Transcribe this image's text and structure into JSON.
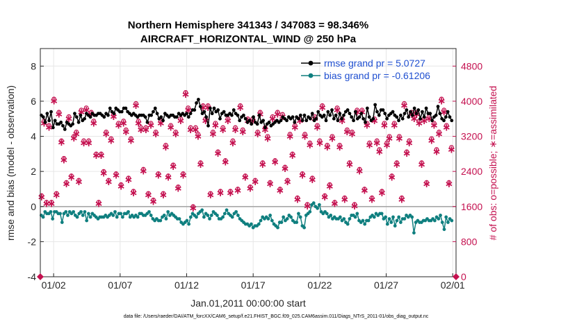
{
  "chart_data": {
    "type": "line",
    "title_line1": "Northern Hemisphere 341343 / 347083 = 98.346%",
    "title_line2": "AIRCRAFT_HORIZONTAL_WIND @ 250 hPa",
    "ylabel_left": "rmse and bias (model - observation)",
    "ylabel_right": "# of obs: o=possible; ∗=assimilated",
    "xlabel": "Jan.01,2011 00:00:00 start",
    "footnote": "data file: /Users/raeder/DAI/ATM_forcXX/CAM6_setup/f.e21.FHIST_BGC.f09_025.CAM6assim.011/Diags_NTrS_2011-01/obs_diag_output.nc",
    "ylim_left": [
      -4,
      9
    ],
    "ylim_right": [
      0,
      5200
    ],
    "xlim_days": [
      0,
      31.25
    ],
    "yticks_left": [
      "-4",
      "-2",
      "0",
      "2",
      "4",
      "6",
      "8"
    ],
    "yticks_right": [
      "0",
      "800",
      "1600",
      "2400",
      "3200",
      "4000",
      "4800"
    ],
    "xticks": [
      {
        "day": 1,
        "label": "01/02"
      },
      {
        "day": 6,
        "label": "01/07"
      },
      {
        "day": 11,
        "label": "01/12"
      },
      {
        "day": 16,
        "label": "01/17"
      },
      {
        "day": 21,
        "label": "01/22"
      },
      {
        "day": 26,
        "label": "01/27"
      },
      {
        "day": 31,
        "label": "02/01"
      }
    ],
    "legend": {
      "rmse_label": "rmse grand pr = 5.0727",
      "bias_label": "bias grand pr = -0.61206",
      "placement": "top-right"
    },
    "colors": {
      "rmse": "#000000",
      "bias": "#0f7f7f",
      "obs": "#c4104f",
      "zero_line": "#a8a8a8"
    },
    "series": [
      {
        "name": "rmse",
        "values": [
          5.2,
          5.1,
          4.8,
          5.3,
          4.9,
          5.4,
          4.5,
          4.9,
          4.7,
          4.7,
          4.8,
          4.6,
          4.4,
          4.8,
          4.7,
          4.6,
          4.7,
          5.3,
          5.1,
          4.8,
          5.2,
          4.9,
          5.0,
          5.3,
          5.2,
          5.1,
          5.3,
          5.2,
          5.2,
          5.3,
          5.3,
          5.2,
          5.1,
          5.3,
          5.2,
          5.6,
          5.4,
          5.3,
          5.6,
          5.5,
          5.4,
          5.4,
          5.6,
          5.6,
          5.4,
          5.3,
          5.2,
          5.3,
          5.2,
          5.1,
          5.2,
          5.2,
          5.2,
          5.1,
          4.8,
          5.2,
          5.2,
          5.4,
          5.6,
          5.3,
          5.0,
          5.1,
          4.9,
          5.3,
          5.2,
          5.1,
          5.2,
          5.2,
          5.1,
          5.1,
          5.3,
          5.2,
          5.3,
          5.2,
          5.3,
          5.1,
          5.3,
          5.5,
          5.5,
          5.9,
          6.1,
          5.7,
          5.3,
          5.4,
          5.1,
          4.6,
          5.6,
          5.3,
          5.6,
          5.4,
          5.5,
          5.0,
          5.3,
          5.4,
          5.2,
          5.2,
          5.3,
          5.2,
          5.5,
          5.3,
          5.2,
          4.9,
          5.1,
          5.2,
          5.0,
          4.8,
          4.9,
          4.7,
          5.1,
          4.8,
          4.7,
          5.2,
          4.8,
          4.9,
          4.5,
          4.7,
          4.8,
          4.6,
          4.7,
          4.8,
          4.9,
          4.8,
          4.9,
          5.1,
          5.0,
          4.9,
          5.1,
          5.0,
          5.1,
          4.8,
          5.1,
          5.0,
          5.2,
          4.9,
          5.2,
          4.9,
          5.1,
          5.0,
          5.3,
          4.9,
          5.0,
          5.4,
          5.2,
          5.1,
          5.2,
          4.9,
          5.4,
          5.2,
          5.5,
          5.0,
          5.2,
          4.9,
          5.3,
          5.0,
          5.2,
          5.4,
          5.5,
          5.3,
          5.1,
          4.9,
          5.4,
          5.0,
          5.1,
          5.3,
          5.0,
          4.8,
          5.6,
          5.1,
          4.9,
          5.0,
          5.8,
          5.4,
          5.2,
          5.5,
          5.5,
          5.3,
          5.0,
          5.2,
          5.3,
          5.4,
          5.2,
          5.1,
          4.9,
          5.2,
          5.0,
          5.3,
          5.5,
          5.1,
          5.4,
          5.2,
          5.6,
          5.3,
          5.5,
          5.0,
          5.4,
          5.1,
          5.6,
          5.3,
          5.3,
          4.9,
          5.1,
          5.2,
          5.7,
          5.3,
          5.0,
          4.9,
          5.1,
          5.4,
          5.1,
          4.9
        ]
      },
      {
        "name": "bias",
        "values": [
          -0.5,
          -0.6,
          -0.3,
          -0.4,
          -0.4,
          -0.3,
          -0.7,
          -0.3,
          -0.3,
          -0.4,
          -0.4,
          -0.9,
          -0.4,
          -0.3,
          -0.5,
          -0.3,
          -0.4,
          -0.3,
          -0.5,
          -0.6,
          -0.4,
          -0.3,
          -0.5,
          -0.3,
          -0.8,
          -0.4,
          -0.6,
          -0.4,
          -0.5,
          -0.6,
          -0.7,
          -0.6,
          -0.6,
          -0.6,
          -0.5,
          -0.6,
          -0.5,
          -0.4,
          -0.5,
          -0.3,
          -0.6,
          -0.4,
          -0.4,
          -0.6,
          -0.4,
          -0.4,
          -0.3,
          -0.6,
          -0.5,
          -0.6,
          -0.5,
          -0.6,
          -0.4,
          -0.4,
          -0.5,
          -0.5,
          -0.4,
          -0.3,
          -0.5,
          -0.7,
          -0.8,
          -0.7,
          -0.8,
          -0.8,
          -0.6,
          -0.5,
          -0.7,
          -0.3,
          -0.5,
          -0.4,
          -0.5,
          -0.6,
          -0.7,
          -0.7,
          -0.9,
          -1.0,
          -0.9,
          -0.8,
          -1.0,
          -0.6,
          -0.4,
          -0.5,
          -0.6,
          -0.4,
          -0.3,
          -0.2,
          -0.6,
          -0.4,
          -0.5,
          -0.7,
          -0.5,
          -0.3,
          -0.4,
          -0.5,
          -0.7,
          -0.7,
          -0.6,
          -0.4,
          -0.2,
          -0.4,
          -0.5,
          -0.6,
          -0.4,
          -0.3,
          -0.5,
          -0.7,
          -0.8,
          -0.9,
          -1.0,
          -1.0,
          -1.1,
          -1.0,
          -1.2,
          -1.1,
          -1.1,
          -1.0,
          -0.8,
          -0.6,
          -0.7,
          -0.6,
          -0.7,
          -0.5,
          -0.8,
          -1.0,
          -1.1,
          -1.2,
          -0.9,
          -0.9,
          -0.6,
          -0.8,
          -0.7,
          -0.5,
          -0.6,
          -0.8,
          -0.9,
          -0.9,
          -0.4,
          -0.6,
          -1.1,
          -1.2,
          -0.5,
          -0.4,
          -0.3,
          0.1,
          0.2,
          0.0,
          -0.1,
          0.1,
          -0.3,
          -0.4,
          -0.3,
          -0.4,
          -0.6,
          -0.5,
          -0.7,
          -0.6,
          -0.7,
          -0.7,
          -0.6,
          -0.8,
          -0.7,
          -0.9,
          -1.0,
          -0.7,
          -0.5,
          -0.5,
          -0.6,
          -0.4,
          -0.8,
          -0.9,
          -0.8,
          -1.0,
          -0.8,
          -0.8,
          -0.6,
          -0.5,
          -0.6,
          -0.4,
          -0.5,
          -0.4,
          -0.4,
          -0.7,
          -0.6,
          -1.0,
          -0.7,
          -0.9,
          -0.6,
          -1.1,
          -0.8,
          -0.6,
          -0.9,
          -0.7,
          -0.7,
          -0.5,
          -0.6,
          -0.5,
          -0.6,
          -1.5,
          -0.9,
          -0.8,
          -0.9,
          -0.9,
          -0.8,
          -0.8,
          -0.7,
          -0.8,
          -0.8,
          -0.7,
          -0.8,
          -0.6,
          -0.7,
          -0.5,
          -0.9,
          -1.3,
          -0.6,
          -0.9,
          -0.7,
          -0.8
        ]
      },
      {
        "name": "possible",
        "values": [
          1850,
          3550,
          1700,
          3450,
          1700,
          4050,
          1900,
          3750,
          3100,
          2700,
          2150,
          3650,
          2300,
          3200,
          3300,
          2200,
          3800,
          3100,
          3850,
          3100,
          3750,
          3550,
          2800,
          1700,
          2800,
          2400,
          3300,
          2200,
          3150,
          3700,
          2350,
          3500,
          2100,
          3550,
          3350,
          2250,
          3150,
          1950,
          3950,
          3550,
          3400,
          2450,
          3400,
          1900,
          3500,
          1750,
          3300,
          2350,
          3550,
          1900,
          3000,
          2300,
          3450,
          2550,
          3300,
          2050,
          3600,
          2350,
          4200,
          3850,
          3400,
          1600,
          3400,
          3250,
          2600,
          3900,
          3600,
          3900,
          1900,
          3300,
          3500,
          2850,
          1950,
          3400,
          2650,
          3600,
          1950,
          3100,
          3400,
          2000,
          3900,
          3350,
          2300,
          3600,
          2050,
          3600,
          2200,
          3300,
          3750,
          2600,
          3400,
          3200,
          2150,
          3650,
          2650,
          3750,
          2000,
          3700,
          2500,
          2200,
          3250,
          2800,
          3450,
          1800,
          3600,
          2350,
          3250,
          1650,
          3050,
          2250,
          3650,
          3450,
          3100,
          3900,
          1850,
          3000,
          2100,
          3200,
          1700,
          3850,
          3000,
          3600,
          1800,
          3350,
          2600,
          3300,
          1650,
          3800,
          2450,
          3800,
          2000,
          3500,
          3050,
          1800,
          3600,
          3100,
          2900,
          1950,
          3500,
          3050,
          3200,
          2300,
          3500,
          2600,
          3200,
          1800,
          3950,
          2850,
          3100,
          3750,
          3650,
          3750,
          3550,
          2600,
          3600,
          2150,
          3650,
          3150,
          3500,
          2900,
          3300,
          4050,
          3800,
          3450,
          2150,
          2950
        ]
      },
      {
        "name": "assimilated",
        "values": [
          1830,
          3520,
          1680,
          3420,
          1680,
          4020,
          1880,
          3720,
          3080,
          2680,
          2130,
          3620,
          2280,
          3180,
          3270,
          2180,
          3770,
          3070,
          3820,
          3070,
          3720,
          3520,
          2780,
          1680,
          2780,
          2380,
          3270,
          2180,
          3120,
          3670,
          2330,
          3470,
          2080,
          3520,
          3320,
          2230,
          3120,
          1930,
          3920,
          3520,
          3370,
          2430,
          3370,
          1880,
          3470,
          1730,
          3270,
          2330,
          3520,
          1880,
          2970,
          2280,
          3420,
          2530,
          3270,
          2030,
          3570,
          2330,
          4170,
          3820,
          3370,
          1580,
          3370,
          3220,
          2580,
          3870,
          3570,
          3870,
          1880,
          3270,
          3470,
          2830,
          1930,
          3370,
          2630,
          3570,
          1930,
          3070,
          3370,
          1980,
          3870,
          3320,
          2280,
          3570,
          2030,
          3570,
          2180,
          3270,
          3720,
          2580,
          3370,
          3170,
          2130,
          3620,
          2630,
          3720,
          1980,
          3670,
          2480,
          2180,
          3220,
          2780,
          3420,
          1780,
          3570,
          2330,
          3220,
          1630,
          3020,
          2230,
          3620,
          3420,
          3070,
          3870,
          1830,
          2970,
          2080,
          3170,
          1680,
          3820,
          2970,
          3570,
          1780,
          3320,
          2580,
          3270,
          1630,
          3770,
          2430,
          3770,
          1980,
          3470,
          3020,
          1780,
          3570,
          3070,
          2870,
          1930,
          3470,
          3020,
          3170,
          2280,
          3470,
          2580,
          3170,
          1780,
          3920,
          2830,
          3070,
          3720,
          3620,
          3720,
          3520,
          2580,
          3570,
          2130,
          3620,
          3120,
          3470,
          2870,
          3270,
          4020,
          3770,
          3420,
          2130,
          2920
        ]
      }
    ]
  }
}
